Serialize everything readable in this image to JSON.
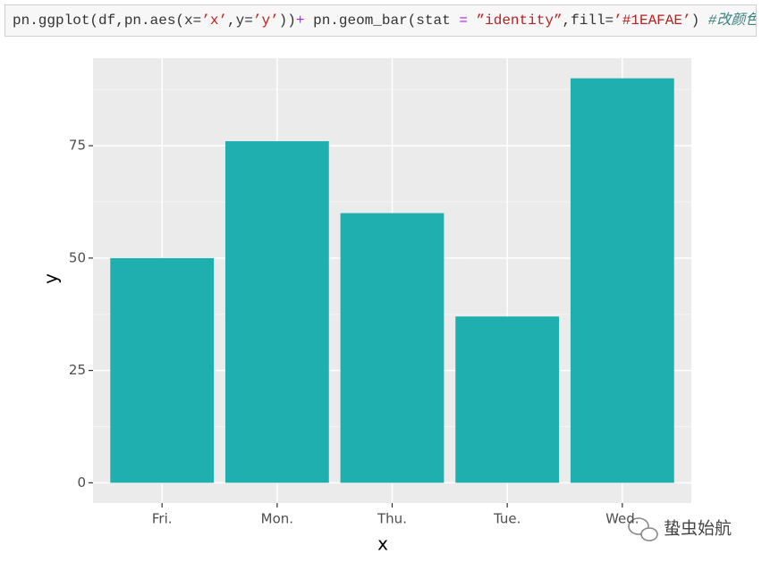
{
  "code": [
    {
      "text": "pn.ggplot(df,pn.aes(x=",
      "color": "#333333"
    },
    {
      "text": "’x’",
      "color": "#ba2121"
    },
    {
      "text": ",y=",
      "color": "#333333"
    },
    {
      "text": "’y’",
      "color": "#ba2121"
    },
    {
      "text": "))",
      "color": "#333333"
    },
    {
      "text": "+",
      "color": "#aa22ff"
    },
    {
      "text": " pn.geom_bar(stat ",
      "color": "#333333"
    },
    {
      "text": "=",
      "color": "#aa22ff"
    },
    {
      "text": " ”identity”",
      "color": "#ba2121"
    },
    {
      "text": ",fill=",
      "color": "#333333"
    },
    {
      "text": "’#1EAFAE’",
      "color": "#ba2121"
    },
    {
      "text": ") ",
      "color": "#333333"
    },
    {
      "text": "#改颜色",
      "color": "#408080"
    }
  ],
  "chart_data": {
    "type": "bar",
    "x_label": "x",
    "y_label": "y",
    "categories": [
      "Fri.",
      "Mon.",
      "Thu.",
      "Tue.",
      "Wed."
    ],
    "values": [
      50,
      76,
      60,
      37,
      90
    ],
    "color": "#1EAFAE",
    "ylim": [
      -4.5,
      94.5
    ],
    "yticks": [
      0,
      25,
      50,
      75
    ],
    "grid": true
  },
  "watermark": "蛰虫始航"
}
